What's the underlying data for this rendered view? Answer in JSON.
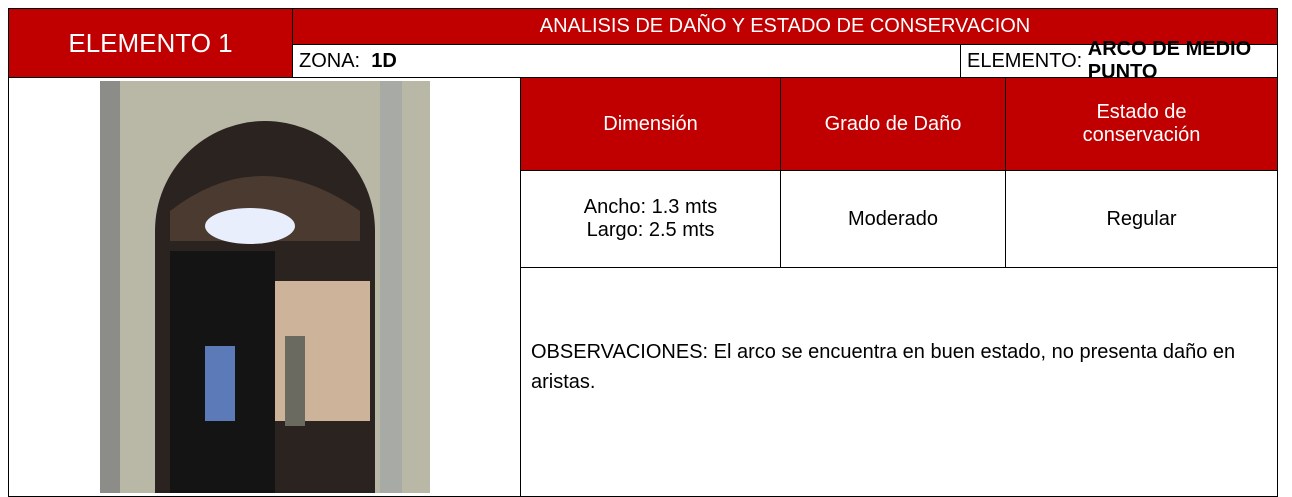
{
  "header": {
    "element": "ELEMENTO 1",
    "title": "ANALISIS DE DAÑO Y ESTADO DE CONSERVACION",
    "zona_label": "ZONA:",
    "zona": "1D",
    "elemento_label": "ELEMENTO:",
    "elemento": "ARCO DE MEDIO PUNTO"
  },
  "table": {
    "headers": [
      "Dimensión",
      "Grado de Daño",
      "Estado de conservación"
    ],
    "dimension": [
      "Ancho: 1.3 mts",
      "Largo: 2.5 mts"
    ],
    "damage": "Moderado",
    "condition": "Regular",
    "observations": "OBSERVACIONES: El arco se encuentra en buen estado, no presenta daño en aristas."
  }
}
